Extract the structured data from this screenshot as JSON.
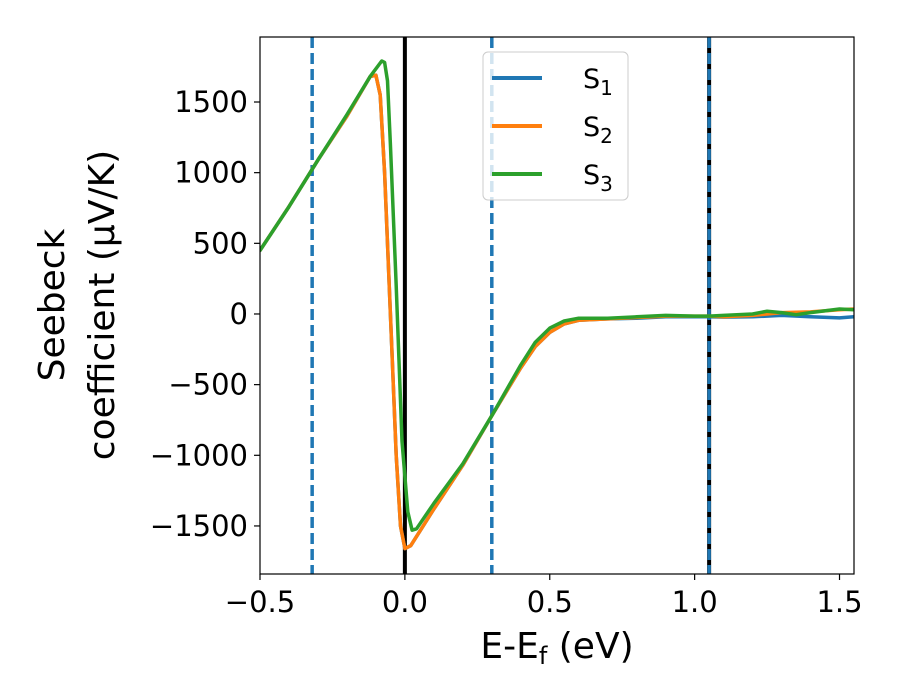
{
  "chart_data": {
    "type": "line",
    "xlabel_main": "E-E",
    "xlabel_sub": "f",
    "xlabel_unit": " (eV)",
    "ylabel_line1": "Seebeck",
    "ylabel_line2": "coefficient  (μV/K)",
    "xlim": [
      -0.5,
      1.55
    ],
    "ylim": [
      -1840,
      1960
    ],
    "x_ticks": [
      -0.5,
      0.0,
      0.5,
      1.0,
      1.5
    ],
    "x_tick_labels": [
      "−0.5",
      "0.0",
      "0.5",
      "1.0",
      "1.5"
    ],
    "y_ticks": [
      -1500,
      -1000,
      -500,
      0,
      500,
      1000,
      1500
    ],
    "y_tick_labels": [
      "−1500",
      "−1000",
      "−500",
      "0",
      "500",
      "1000",
      "1500"
    ],
    "legend_position": "top-center",
    "vlines": [
      {
        "x": -0.32,
        "color": "#1f77b4",
        "style": "dashed"
      },
      {
        "x": 0.3,
        "color": "#1f77b4",
        "style": "dashed"
      },
      {
        "x": 0.0,
        "color": "#000000",
        "style": "solid"
      },
      {
        "x": 1.05,
        "color": "#000000",
        "style": "solid"
      },
      {
        "x": 1.05,
        "color": "#1f77b4",
        "style": "dashed"
      }
    ],
    "series": [
      {
        "name": "S",
        "subscript": "1",
        "color": "#1f77b4",
        "points": [
          [
            -0.5,
            450
          ],
          [
            -0.4,
            760
          ],
          [
            -0.3,
            1090
          ],
          [
            -0.2,
            1400
          ],
          [
            -0.12,
            1680
          ],
          [
            -0.1,
            1690
          ],
          [
            -0.085,
            1550
          ],
          [
            -0.07,
            1000
          ],
          [
            -0.05,
            0
          ],
          [
            -0.03,
            -1000
          ],
          [
            -0.015,
            -1500
          ],
          [
            0.0,
            -1660
          ],
          [
            0.02,
            -1640
          ],
          [
            0.1,
            -1380
          ],
          [
            0.2,
            -1070
          ],
          [
            0.3,
            -720
          ],
          [
            0.4,
            -380
          ],
          [
            0.45,
            -230
          ],
          [
            0.5,
            -130
          ],
          [
            0.55,
            -70
          ],
          [
            0.6,
            -45
          ],
          [
            0.7,
            -35
          ],
          [
            0.8,
            -30
          ],
          [
            0.9,
            -20
          ],
          [
            1.0,
            -20
          ],
          [
            1.05,
            -20
          ],
          [
            1.1,
            -22
          ],
          [
            1.2,
            -20
          ],
          [
            1.3,
            -10
          ],
          [
            1.4,
            -20
          ],
          [
            1.5,
            -28
          ],
          [
            1.55,
            -20
          ]
        ]
      },
      {
        "name": "S",
        "subscript": "2",
        "color": "#ff7f0e",
        "points": [
          [
            -0.5,
            450
          ],
          [
            -0.4,
            760
          ],
          [
            -0.3,
            1090
          ],
          [
            -0.2,
            1400
          ],
          [
            -0.12,
            1680
          ],
          [
            -0.1,
            1690
          ],
          [
            -0.085,
            1550
          ],
          [
            -0.07,
            1000
          ],
          [
            -0.05,
            0
          ],
          [
            -0.03,
            -1000
          ],
          [
            -0.015,
            -1500
          ],
          [
            0.0,
            -1660
          ],
          [
            0.02,
            -1640
          ],
          [
            0.1,
            -1380
          ],
          [
            0.2,
            -1070
          ],
          [
            0.3,
            -720
          ],
          [
            0.4,
            -380
          ],
          [
            0.45,
            -230
          ],
          [
            0.5,
            -130
          ],
          [
            0.55,
            -70
          ],
          [
            0.6,
            -45
          ],
          [
            0.7,
            -35
          ],
          [
            0.8,
            -25
          ],
          [
            0.9,
            -15
          ],
          [
            1.0,
            -15
          ],
          [
            1.05,
            -15
          ],
          [
            1.1,
            -20
          ],
          [
            1.2,
            -10
          ],
          [
            1.3,
            10
          ],
          [
            1.4,
            15
          ],
          [
            1.5,
            30
          ],
          [
            1.55,
            35
          ]
        ]
      },
      {
        "name": "S",
        "subscript": "3",
        "color": "#2ca02c",
        "points": [
          [
            -0.5,
            450
          ],
          [
            -0.4,
            760
          ],
          [
            -0.3,
            1090
          ],
          [
            -0.2,
            1410
          ],
          [
            -0.12,
            1680
          ],
          [
            -0.08,
            1790
          ],
          [
            -0.07,
            1780
          ],
          [
            -0.06,
            1650
          ],
          [
            -0.05,
            1200
          ],
          [
            -0.03,
            200
          ],
          [
            -0.01,
            -900
          ],
          [
            0.01,
            -1400
          ],
          [
            0.025,
            -1530
          ],
          [
            0.04,
            -1520
          ],
          [
            0.1,
            -1340
          ],
          [
            0.2,
            -1060
          ],
          [
            0.3,
            -720
          ],
          [
            0.4,
            -360
          ],
          [
            0.45,
            -200
          ],
          [
            0.5,
            -100
          ],
          [
            0.55,
            -50
          ],
          [
            0.6,
            -30
          ],
          [
            0.7,
            -30
          ],
          [
            0.8,
            -20
          ],
          [
            0.9,
            -10
          ],
          [
            1.0,
            -15
          ],
          [
            1.05,
            -15
          ],
          [
            1.1,
            -10
          ],
          [
            1.2,
            0
          ],
          [
            1.25,
            20
          ],
          [
            1.3,
            10
          ],
          [
            1.35,
            -5
          ],
          [
            1.4,
            10
          ],
          [
            1.5,
            35
          ],
          [
            1.55,
            30
          ]
        ]
      }
    ]
  }
}
